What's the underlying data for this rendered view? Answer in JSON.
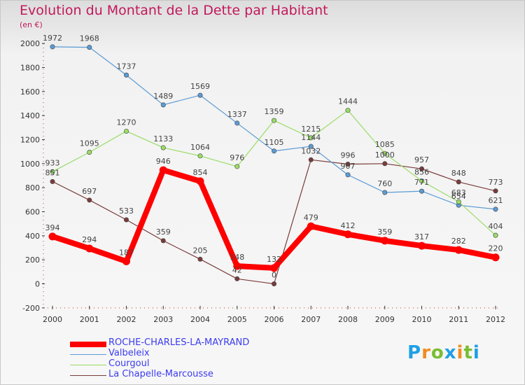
{
  "chart_data": {
    "type": "line",
    "title": "Evolution du Montant de la Dette par Habitant",
    "unit_label": "(en €)",
    "x": [
      "2000",
      "2001",
      "2002",
      "2003",
      "2004",
      "2005",
      "2006",
      "2007",
      "2008",
      "2009",
      "2010",
      "2011",
      "2012"
    ],
    "ylim": [
      -200,
      2000
    ],
    "yticks": [
      -200,
      0,
      200,
      400,
      600,
      800,
      1000,
      1200,
      1400,
      1600,
      1800,
      2000
    ],
    "grid": false,
    "legend_position": "bottom-left",
    "series": [
      {
        "name": "ROCHE-CHARLES-LA-MAYRAND",
        "color": "#ff0000",
        "values": [
          394,
          294,
          187,
          946,
          854,
          148,
          132,
          479,
          412,
          359,
          317,
          282,
          220
        ]
      },
      {
        "name": "Valbeleix",
        "color": "#5b9bd5",
        "values": [
          1972,
          1968,
          1737,
          1489,
          1569,
          1337,
          1105,
          1144,
          907,
          760,
          771,
          654,
          621
        ]
      },
      {
        "name": "Courgoul",
        "color": "#99dd66",
        "values": [
          933,
          1095,
          1270,
          1133,
          1064,
          976,
          1359,
          1215,
          1444,
          1085,
          856,
          683,
          404
        ]
      },
      {
        "name": "La Chapelle-Marcousse",
        "color": "#7a3b3b",
        "values": [
          851,
          697,
          533,
          359,
          205,
          42,
          0,
          1032,
          996,
          1000,
          957,
          848,
          773
        ]
      }
    ]
  },
  "logo": {
    "letters": [
      "P",
      "r",
      "o",
      "x",
      "i",
      "t",
      "i"
    ],
    "colors": [
      "#1ea0e6",
      "#f08c1e",
      "#78be32",
      "#1ea0e6",
      "#f08c1e",
      "#78be32",
      "#1ea0e6"
    ]
  }
}
